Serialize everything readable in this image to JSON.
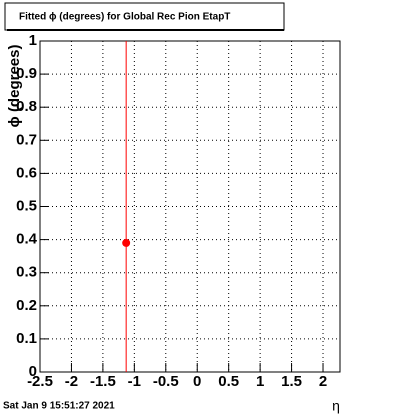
{
  "chart_data": {
    "type": "scatter",
    "title": "Fitted ϕ (degrees) for Global Rec Pion EtapT",
    "x_label": "η",
    "y_label": "ϕ (degrees)",
    "timestamp": "Sat Jan  9 15:51:27 2021",
    "x": [
      -1.13
    ],
    "values": [
      0.39
    ],
    "yerr": [
      1
    ],
    "color": "#ff0000",
    "xlim": [
      -2.5,
      2.27
    ],
    "xticks": [
      -2.5,
      -2,
      -1.5,
      -1,
      -0.5,
      0,
      0.5,
      1,
      1.5,
      2
    ],
    "ylim": [
      0,
      1
    ],
    "yticks": [
      0,
      0.1,
      0.2,
      0.3,
      0.4,
      0.5,
      0.6,
      0.7,
      0.8,
      0.9,
      1
    ],
    "grid": true
  }
}
